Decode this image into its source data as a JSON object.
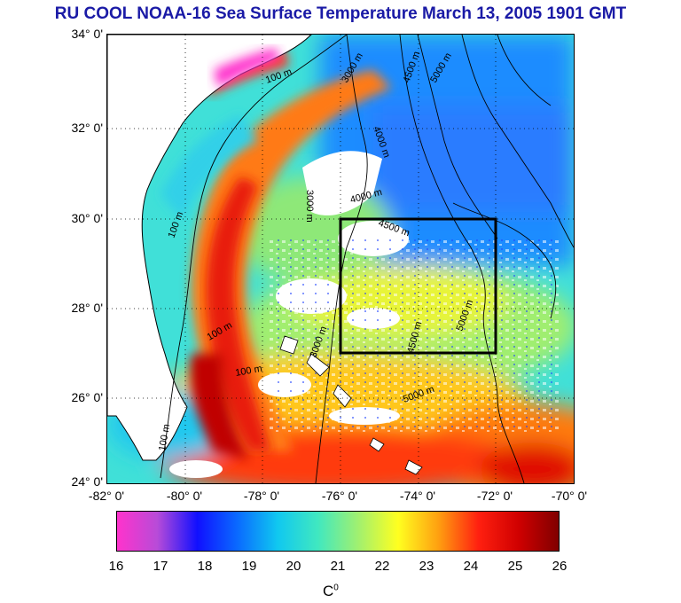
{
  "title": "RU COOL  NOAA-16 Sea Surface Temperature March 13, 2005 1901 GMT",
  "axes": {
    "lat_labels": [
      "34° 0'",
      "32° 0'",
      "30° 0'",
      "28° 0'",
      "26° 0'",
      "24° 0'"
    ],
    "lon_labels": [
      "-82° 0'",
      "-80° 0'",
      "-78° 0'",
      "-76° 0'",
      "-74° 0'",
      "-72° 0'",
      "-70° 0'"
    ]
  },
  "contour_labels": [
    "100 m",
    "3000 m",
    "4500 m",
    "5000 m",
    "4000 m",
    "3000 m",
    "4000 m",
    "4500 m",
    "100 m",
    "3000 m",
    "100 m",
    "100 m",
    "4500 m",
    "5000 m",
    "100 m",
    "5000 m"
  ],
  "colorbar": {
    "ticks": [
      "16",
      "17",
      "18",
      "19",
      "20",
      "21",
      "22",
      "23",
      "24",
      "25",
      "26"
    ],
    "unit_base": "C",
    "unit_sup": "0"
  },
  "colors": {
    "title": "#1a1aa6",
    "ramp": [
      "#ff33cc",
      "#b84bd8",
      "#1010ff",
      "#0a6aff",
      "#10c8f0",
      "#40e8c0",
      "#a0f070",
      "#ffff20",
      "#ffa010",
      "#ff2010",
      "#d00000",
      "#800000"
    ]
  }
}
